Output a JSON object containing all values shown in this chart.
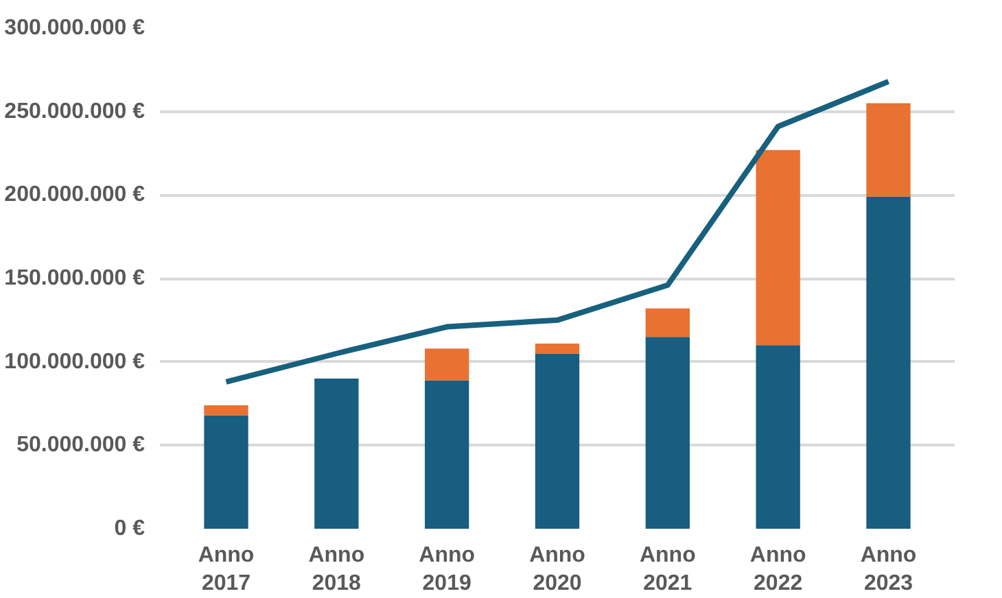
{
  "chart_data": {
    "type": "bar",
    "stacked": true,
    "categories": [
      "Anno 2017",
      "Anno 2018",
      "Anno 2019",
      "Anno 2020",
      "Anno 2021",
      "Anno 2022",
      "Anno 2023"
    ],
    "series": [
      {
        "color": "#175e80",
        "values": [
          68000000,
          90000000,
          89000000,
          105000000,
          115000000,
          110000000,
          199000000
        ]
      },
      {
        "color": "#e97132",
        "values": [
          6000000,
          null,
          19000000,
          6000000,
          17000000,
          117000000,
          56000000
        ]
      },
      {
        "type": "line",
        "color": "#17607e",
        "values": [
          88000000,
          105000000,
          121000000,
          125000000,
          146000000,
          241000000,
          268000000
        ]
      }
    ],
    "ylim": [
      0,
      300000000
    ],
    "yticks": [
      {
        "value": 0,
        "label": "0 €"
      },
      {
        "value": 50000000,
        "label": "50.000.000 €"
      },
      {
        "value": 100000000,
        "label": "100.000.000 €"
      },
      {
        "value": 150000000,
        "label": "150.000.000 €"
      },
      {
        "value": 200000000,
        "label": "200.000.000 €"
      },
      {
        "value": 250000000,
        "label": "250.000.000 €"
      },
      {
        "value": 300000000,
        "label": "300.000.000 €"
      }
    ],
    "grid": "y"
  }
}
